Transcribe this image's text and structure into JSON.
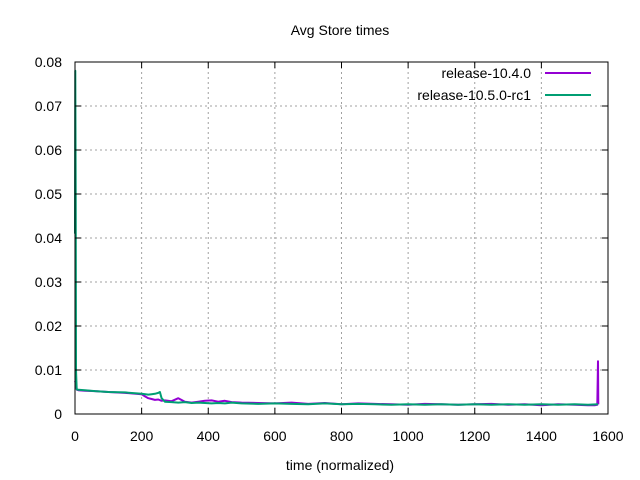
{
  "chart_data": {
    "type": "line",
    "title": "Avg Store times",
    "xlabel": "time (normalized)",
    "ylabel": "",
    "xlim": [
      0,
      1600
    ],
    "ylim": [
      0,
      0.08
    ],
    "xticks": [
      0,
      200,
      400,
      600,
      800,
      1000,
      1200,
      1400,
      1600
    ],
    "xtick_labels": [
      "0",
      "200",
      "400",
      "600",
      "800",
      "1000",
      "1200",
      "1400",
      "1600"
    ],
    "yticks": [
      0,
      0.01,
      0.02,
      0.03,
      0.04,
      0.05,
      0.06,
      0.07,
      0.08
    ],
    "ytick_labels": [
      "0",
      "0.01",
      "0.02",
      "0.03",
      "0.04",
      "0.05",
      "0.06",
      "0.07",
      "0.08"
    ],
    "grid": true,
    "legend_position": "top-right",
    "series": [
      {
        "name": "release-10.4.0",
        "color": "#9400d3",
        "x": [
          0,
          2,
          4,
          6,
          10,
          30,
          60,
          100,
          150,
          200,
          210,
          220,
          230,
          240,
          250,
          260,
          270,
          290,
          310,
          330,
          350,
          370,
          390,
          410,
          430,
          450,
          470,
          500,
          550,
          600,
          650,
          700,
          750,
          800,
          850,
          900,
          950,
          1000,
          1050,
          1100,
          1150,
          1200,
          1250,
          1300,
          1350,
          1400,
          1450,
          1500,
          1540,
          1560,
          1568,
          1570,
          1571
        ],
        "values": [
          0.0075,
          0.0071,
          0.006,
          0.0055,
          0.0054,
          0.0053,
          0.0052,
          0.005,
          0.0048,
          0.0045,
          0.004,
          0.0036,
          0.0034,
          0.0032,
          0.0033,
          0.003,
          0.0031,
          0.0029,
          0.0036,
          0.0028,
          0.0026,
          0.0028,
          0.003,
          0.0031,
          0.0028,
          0.003,
          0.0027,
          0.0026,
          0.0025,
          0.0024,
          0.0026,
          0.0023,
          0.0025,
          0.0022,
          0.0024,
          0.0023,
          0.0022,
          0.0021,
          0.0023,
          0.0022,
          0.0021,
          0.0022,
          0.0023,
          0.0021,
          0.0022,
          0.002,
          0.0022,
          0.0021,
          0.002,
          0.002,
          0.0021,
          0.012,
          0.0022
        ]
      },
      {
        "name": "release-10.5.0-rc1",
        "color": "#009e73",
        "x": [
          0,
          1,
          2,
          3,
          5,
          10,
          30,
          60,
          100,
          150,
          200,
          220,
          230,
          240,
          250,
          255,
          260,
          270,
          290,
          310,
          330,
          350,
          370,
          390,
          410,
          430,
          450,
          470,
          500,
          550,
          600,
          650,
          700,
          750,
          800,
          850,
          900,
          950,
          1000,
          1050,
          1100,
          1150,
          1200,
          1250,
          1300,
          1350,
          1400,
          1450,
          1500,
          1540,
          1570
        ],
        "values": [
          0.041,
          0.078,
          0.05,
          0.01,
          0.0056,
          0.0055,
          0.0054,
          0.0052,
          0.005,
          0.0049,
          0.0046,
          0.0044,
          0.0045,
          0.0046,
          0.0048,
          0.005,
          0.0036,
          0.0028,
          0.0027,
          0.0026,
          0.0027,
          0.0025,
          0.0026,
          0.0025,
          0.0024,
          0.0025,
          0.0024,
          0.0026,
          0.0024,
          0.0023,
          0.0024,
          0.0023,
          0.0022,
          0.0024,
          0.0022,
          0.0023,
          0.0022,
          0.0021,
          0.0022,
          0.0021,
          0.0022,
          0.0021,
          0.0022,
          0.0021,
          0.0022,
          0.0021,
          0.0022,
          0.0021,
          0.0022,
          0.0021,
          0.0022
        ]
      }
    ]
  }
}
